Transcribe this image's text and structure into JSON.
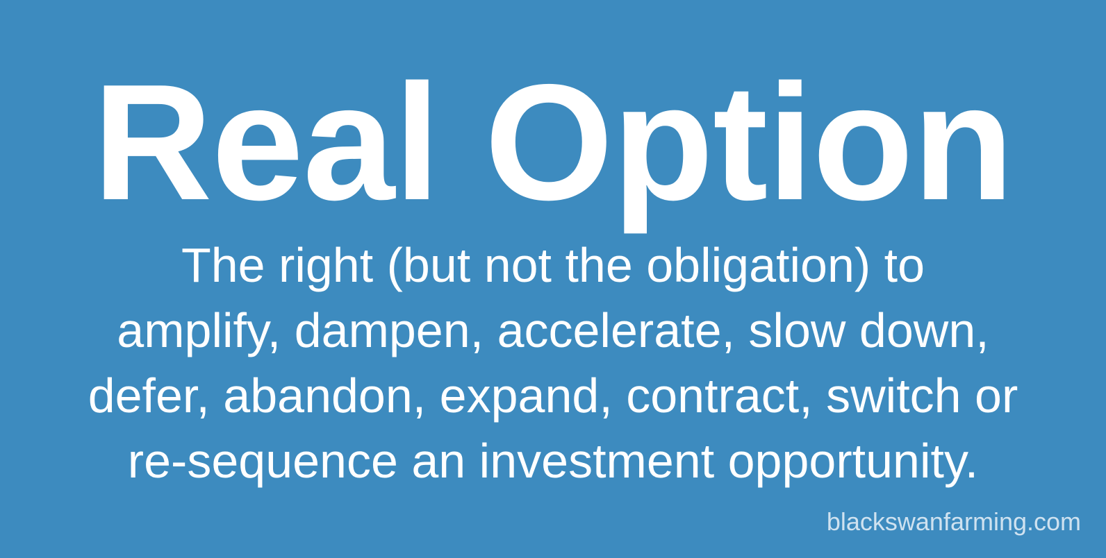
{
  "title": "Real Option",
  "definition": {
    "lines": [
      "The right (but not the obligation) to",
      "amplify, dampen, accelerate, slow down,",
      "defer, abandon, expand, contract, switch or",
      "re-sequence an investment opportunity."
    ]
  },
  "watermark": "blackswanfarming.com",
  "colors": {
    "background": "#3d8bbf",
    "text": "#ffffff",
    "watermark": "#cfe2f0"
  }
}
